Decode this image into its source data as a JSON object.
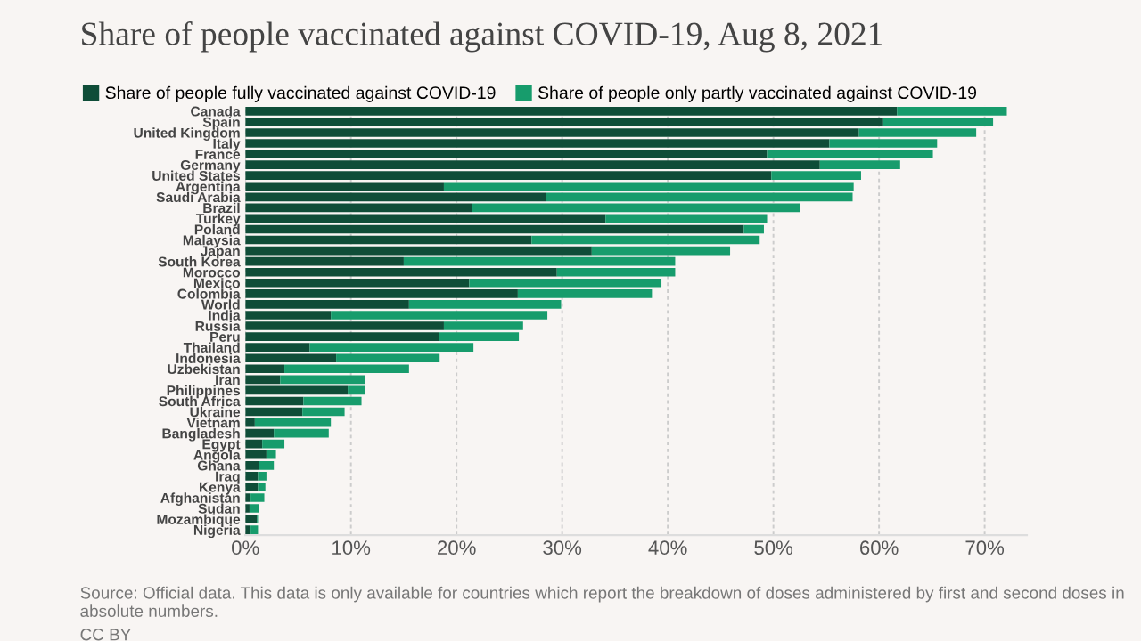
{
  "chart_data": {
    "type": "bar",
    "orientation": "horizontal",
    "stacked": true,
    "title": "Share of people vaccinated against COVID-19, Aug 8, 2021",
    "categories": [
      "Canada",
      "Spain",
      "United Kingdom",
      "Italy",
      "France",
      "Germany",
      "United States",
      "Argentina",
      "Saudi Arabia",
      "Brazil",
      "Turkey",
      "Poland",
      "Malaysia",
      "Japan",
      "South Korea",
      "Morocco",
      "Mexico",
      "Colombia",
      "World",
      "India",
      "Russia",
      "Peru",
      "Thailand",
      "Indonesia",
      "Uzbekistan",
      "Iran",
      "Philippines",
      "South Africa",
      "Ukraine",
      "Vietnam",
      "Bangladesh",
      "Egypt",
      "Angola",
      "Ghana",
      "Iraq",
      "Kenya",
      "Afghanistan",
      "Sudan",
      "Mozambique",
      "Nigeria"
    ],
    "series": [
      {
        "name": "Share of people fully vaccinated against COVID-19",
        "color": "#0f4d38",
        "values": [
          61.7,
          60.4,
          58.1,
          55.3,
          49.4,
          54.4,
          49.8,
          18.8,
          28.5,
          21.5,
          34.1,
          47.2,
          27.1,
          32.8,
          15.0,
          29.5,
          21.2,
          25.8,
          15.5,
          8.1,
          18.8,
          18.3,
          6.1,
          8.6,
          3.7,
          3.3,
          9.7,
          5.5,
          5.4,
          0.9,
          2.7,
          1.6,
          2.0,
          1.3,
          1.2,
          1.2,
          0.5,
          0.4,
          1.1,
          0.5
        ]
      },
      {
        "name": "Share of people only partly vaccinated against COVID-19",
        "color": "#179c6c",
        "values": [
          10.4,
          10.4,
          11.1,
          10.2,
          15.7,
          7.6,
          8.5,
          38.8,
          29.0,
          31.0,
          15.3,
          1.9,
          21.6,
          13.1,
          25.7,
          11.2,
          18.2,
          12.7,
          14.4,
          20.5,
          7.5,
          7.6,
          15.5,
          9.8,
          11.8,
          8.0,
          1.6,
          5.5,
          4.0,
          7.2,
          5.2,
          2.1,
          0.9,
          1.4,
          0.8,
          0.7,
          1.3,
          0.9,
          0.1,
          0.7
        ]
      }
    ],
    "xlim": [
      0,
      74
    ],
    "xticks": [
      {
        "value": 0,
        "label": "0%"
      },
      {
        "value": 10,
        "label": "10%"
      },
      {
        "value": 20,
        "label": "20%"
      },
      {
        "value": 30,
        "label": "30%"
      },
      {
        "value": 40,
        "label": "40%"
      },
      {
        "value": 50,
        "label": "50%"
      },
      {
        "value": 60,
        "label": "60%"
      },
      {
        "value": 70,
        "label": "70%"
      }
    ],
    "grid": "x",
    "legend": "top left",
    "annotations": [
      "Source: Official data. This data is only available for countries which report the breakdown of doses administered by first and second doses in absolute numbers.",
      "CC BY"
    ]
  }
}
